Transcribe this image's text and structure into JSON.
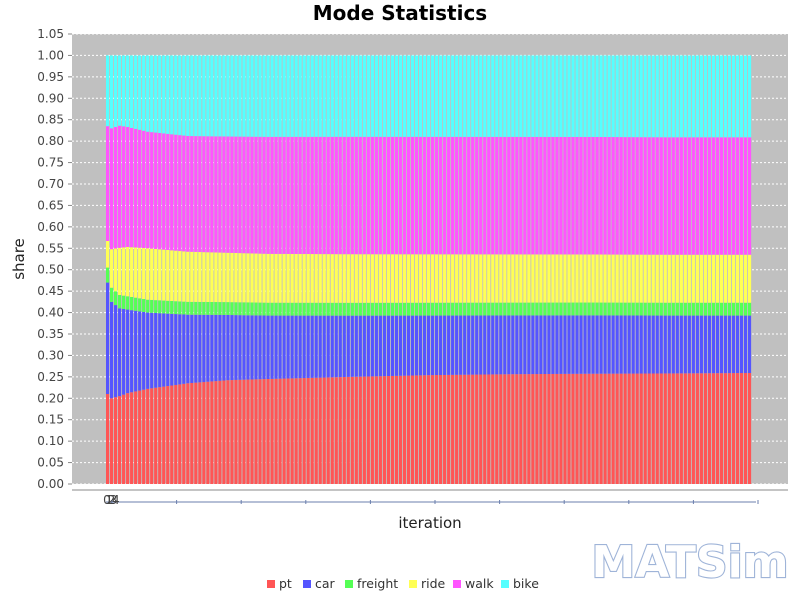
{
  "chart_data": {
    "type": "bar",
    "stacked": true,
    "title": "Mode Statistics",
    "xlabel": "iteration",
    "ylabel": "share",
    "ylim": [
      0,
      1.05
    ],
    "y_ticks": [
      "0.00",
      "0.05",
      "0.10",
      "0.15",
      "0.20",
      "0.25",
      "0.30",
      "0.35",
      "0.40",
      "0.45",
      "0.50",
      "0.55",
      "0.60",
      "0.65",
      "0.70",
      "0.75",
      "0.80",
      "0.85",
      "0.90",
      "0.95",
      "1.00",
      "1.05"
    ],
    "x_ticks": [
      "0",
      "1",
      "2",
      "3",
      "4"
    ],
    "x_first_iteration": 0,
    "x_last_iteration": 160,
    "grid": true,
    "legend_position": "bottom",
    "series": [
      {
        "name": "pt",
        "color": "#ff5555",
        "keyframes": [
          [
            0,
            0.21
          ],
          [
            1,
            0.2
          ],
          [
            3,
            0.205
          ],
          [
            5,
            0.212
          ],
          [
            10,
            0.222
          ],
          [
            20,
            0.235
          ],
          [
            30,
            0.242
          ],
          [
            40,
            0.245
          ],
          [
            60,
            0.25
          ],
          [
            80,
            0.254
          ],
          [
            100,
            0.256
          ],
          [
            120,
            0.257
          ],
          [
            140,
            0.258
          ],
          [
            160,
            0.259
          ]
        ]
      },
      {
        "name": "car",
        "color": "#5555ff",
        "keyframes": [
          [
            0,
            0.26
          ],
          [
            1,
            0.225
          ],
          [
            3,
            0.205
          ],
          [
            5,
            0.195
          ],
          [
            10,
            0.178
          ],
          [
            20,
            0.16
          ],
          [
            30,
            0.152
          ],
          [
            40,
            0.148
          ],
          [
            60,
            0.143
          ],
          [
            80,
            0.139
          ],
          [
            100,
            0.137
          ],
          [
            120,
            0.136
          ],
          [
            140,
            0.135
          ],
          [
            160,
            0.134
          ]
        ]
      },
      {
        "name": "freight",
        "color": "#55ff55",
        "keyframes": [
          [
            0,
            0.035
          ],
          [
            1,
            0.033
          ],
          [
            3,
            0.031
          ],
          [
            5,
            0.031
          ],
          [
            10,
            0.03
          ],
          [
            20,
            0.03
          ],
          [
            40,
            0.03
          ],
          [
            80,
            0.03
          ],
          [
            120,
            0.03
          ],
          [
            160,
            0.03
          ]
        ]
      },
      {
        "name": "ride",
        "color": "#ffff55",
        "keyframes": [
          [
            0,
            0.062
          ],
          [
            1,
            0.09
          ],
          [
            3,
            0.11
          ],
          [
            5,
            0.115
          ],
          [
            10,
            0.12
          ],
          [
            20,
            0.117
          ],
          [
            30,
            0.115
          ],
          [
            40,
            0.114
          ],
          [
            80,
            0.113
          ],
          [
            120,
            0.112
          ],
          [
            160,
            0.112
          ]
        ]
      },
      {
        "name": "walk",
        "color": "#ff55ff",
        "keyframes": [
          [
            0,
            0.268
          ],
          [
            1,
            0.282
          ],
          [
            3,
            0.285
          ],
          [
            5,
            0.28
          ],
          [
            10,
            0.272
          ],
          [
            20,
            0.27
          ],
          [
            30,
            0.271
          ],
          [
            40,
            0.273
          ],
          [
            60,
            0.274
          ],
          [
            80,
            0.274
          ],
          [
            100,
            0.274
          ],
          [
            120,
            0.274
          ],
          [
            140,
            0.274
          ],
          [
            160,
            0.274
          ]
        ]
      },
      {
        "name": "bike",
        "color": "#55ffff",
        "keyframes": [
          [
            0,
            0.165
          ],
          [
            1,
            0.17
          ],
          [
            3,
            0.164
          ],
          [
            5,
            0.167
          ],
          [
            10,
            0.178
          ],
          [
            20,
            0.188
          ],
          [
            30,
            0.189
          ],
          [
            40,
            0.19
          ],
          [
            60,
            0.19
          ],
          [
            80,
            0.19
          ],
          [
            100,
            0.19
          ],
          [
            120,
            0.19
          ],
          [
            140,
            0.191
          ],
          [
            160,
            0.191
          ]
        ]
      }
    ]
  },
  "logo": {
    "text": "MATSim"
  }
}
